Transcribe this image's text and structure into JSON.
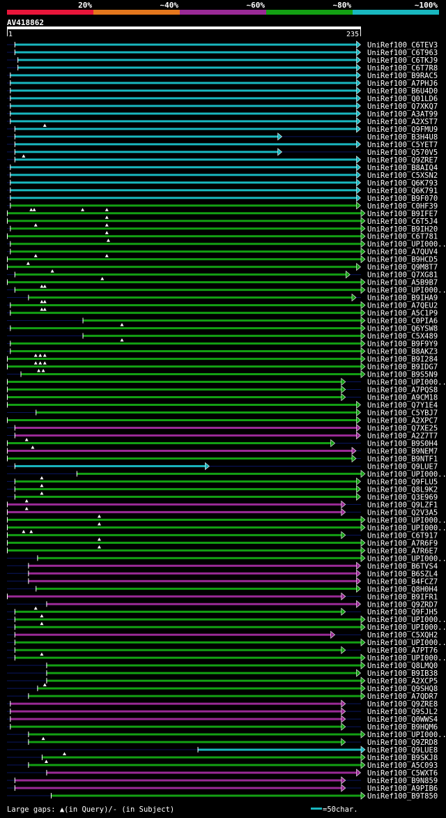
{
  "header": {
    "identity_legend": [
      "20%",
      "~40%",
      "~60%",
      "~80%",
      "~100%"
    ],
    "identity_colors": [
      "#e8163a",
      "#e4771d",
      "#9a2a96",
      "#13a013",
      "#19b7bf"
    ],
    "query_id": "AV418862",
    "scale_start": "1",
    "scale_end": "235"
  },
  "footer": {
    "gaps_legend": "Large gaps: ▲(in Query)/- (in Subject)",
    "scale_legend": "=50char."
  },
  "chart_data": {
    "type": "alignment-overview",
    "query_length": 235,
    "rows": [
      {
        "label": "UniRef100_C6TEV3",
        "start": 6,
        "end": 232,
        "identity": "~100%",
        "arrow": true,
        "gaps": []
      },
      {
        "label": "UniRef100_C6T963",
        "start": 6,
        "end": 232,
        "identity": "~100%",
        "arrow": true,
        "gaps": []
      },
      {
        "label": "UniRef100_C6TKJ9",
        "start": 8,
        "end": 232,
        "identity": "~100%",
        "arrow": true,
        "gaps": []
      },
      {
        "label": "UniRef100_C6T7R8",
        "start": 8,
        "end": 232,
        "identity": "~100%",
        "arrow": true,
        "gaps": []
      },
      {
        "label": "UniRef100_B9RAC5",
        "start": 3,
        "end": 232,
        "identity": "~100%",
        "arrow": true,
        "gaps": []
      },
      {
        "label": "UniRef100_A7PHJ6",
        "start": 3,
        "end": 232,
        "identity": "~100%",
        "arrow": true,
        "gaps": []
      },
      {
        "label": "UniRef100_B6U4D0",
        "start": 3,
        "end": 232,
        "identity": "~100%",
        "arrow": true,
        "gaps": []
      },
      {
        "label": "UniRef100_Q01LD6",
        "start": 3,
        "end": 232,
        "identity": "~100%",
        "arrow": true,
        "gaps": []
      },
      {
        "label": "UniRef100_Q7XKQ7",
        "start": 3,
        "end": 232,
        "identity": "~100%",
        "arrow": true,
        "gaps": []
      },
      {
        "label": "UniRef100_A3AT99",
        "start": 3,
        "end": 232,
        "identity": "~100%",
        "arrow": true,
        "gaps": []
      },
      {
        "label": "UniRef100_A2XST7",
        "start": 3,
        "end": 232,
        "identity": "~100%",
        "arrow": true,
        "gaps": []
      },
      {
        "label": "UniRef100_Q9FMU9",
        "start": 6,
        "end": 232,
        "identity": "~100%",
        "arrow": true,
        "gaps": [
          26
        ]
      },
      {
        "label": "UniRef100_B3H4U8",
        "start": 6,
        "end": 180,
        "identity": "~100%",
        "arrow": true,
        "gaps": []
      },
      {
        "label": "UniRef100_C5YET7",
        "start": 6,
        "end": 232,
        "identity": "~100%",
        "arrow": true,
        "gaps": []
      },
      {
        "label": "UniRef100_Q570V5",
        "start": 6,
        "end": 180,
        "identity": "~100%",
        "arrow": true,
        "gaps": []
      },
      {
        "label": "UniRef100_Q9ZRE7",
        "start": 6,
        "end": 232,
        "identity": "~100%",
        "arrow": true,
        "gaps": [
          12
        ]
      },
      {
        "label": "UniRef100_B8AIQ4",
        "start": 3,
        "end": 232,
        "identity": "~100%",
        "arrow": true,
        "gaps": []
      },
      {
        "label": "UniRef100_C5XSN2",
        "start": 3,
        "end": 232,
        "identity": "~100%",
        "arrow": true,
        "gaps": []
      },
      {
        "label": "UniRef100_Q6K793",
        "start": 3,
        "end": 232,
        "identity": "~100%",
        "arrow": true,
        "gaps": []
      },
      {
        "label": "UniRef100_Q6K791",
        "start": 3,
        "end": 232,
        "identity": "~100%",
        "arrow": true,
        "gaps": []
      },
      {
        "label": "UniRef100_B9F070",
        "start": 3,
        "end": 232,
        "identity": "~100%",
        "arrow": true,
        "gaps": []
      },
      {
        "label": "UniRef100_C0HF39",
        "start": 3,
        "end": 232,
        "identity": "~80%",
        "arrow": true,
        "gaps": []
      },
      {
        "label": "UniRef100_B9IFE7",
        "start": 1,
        "end": 235,
        "identity": "~80%",
        "arrow": true,
        "gaps": [
          17,
          19,
          51,
          67
        ]
      },
      {
        "label": "UniRef100_C6T5J4",
        "start": 1,
        "end": 235,
        "identity": "~80%",
        "arrow": true,
        "gaps": [
          67
        ]
      },
      {
        "label": "UniRef100_B9IH20",
        "start": 3,
        "end": 235,
        "identity": "~80%",
        "arrow": true,
        "gaps": [
          20,
          67
        ]
      },
      {
        "label": "UniRef100_C6T781",
        "start": 1,
        "end": 235,
        "identity": "~80%",
        "arrow": true,
        "gaps": [
          67
        ]
      },
      {
        "label": "UniRef100_UPI000..",
        "start": 3,
        "end": 235,
        "identity": "~80%",
        "arrow": true,
        "gaps": [
          68
        ]
      },
      {
        "label": "UniRef100_A7QUV4",
        "start": 3,
        "end": 235,
        "identity": "~80%",
        "arrow": true,
        "gaps": []
      },
      {
        "label": "UniRef100_B9HCD5",
        "start": 1,
        "end": 235,
        "identity": "~80%",
        "arrow": true,
        "gaps": [
          20,
          67
        ]
      },
      {
        "label": "UniRef100_Q9M8T7",
        "start": 1,
        "end": 232,
        "identity": "~80%",
        "arrow": true,
        "gaps": [
          15
        ]
      },
      {
        "label": "UniRef100_Q7XG81",
        "start": 6,
        "end": 225,
        "identity": "~80%",
        "arrow": true,
        "gaps": [
          31
        ]
      },
      {
        "label": "UniRef100_A5B9B7",
        "start": 1,
        "end": 235,
        "identity": "~80%",
        "arrow": true,
        "gaps": [
          64
        ]
      },
      {
        "label": "UniRef100_UPI000..",
        "start": 6,
        "end": 235,
        "identity": "~80%",
        "arrow": true,
        "gaps": [
          24,
          26
        ]
      },
      {
        "label": "UniRef100_B9IHA9",
        "start": 15,
        "end": 229,
        "identity": "~80%",
        "arrow": true,
        "gaps": []
      },
      {
        "label": "UniRef100_A7QEU2",
        "start": 3,
        "end": 235,
        "identity": "~80%",
        "arrow": true,
        "gaps": [
          24,
          26
        ]
      },
      {
        "label": "UniRef100_A5C1P9",
        "start": 3,
        "end": 235,
        "identity": "~80%",
        "arrow": true,
        "gaps": [
          24,
          26
        ]
      },
      {
        "label": "UniRef100_C0PIA6",
        "start": 51,
        "end": 235,
        "identity": "~80%",
        "arrow": true,
        "gaps": []
      },
      {
        "label": "UniRef100_Q6YSW8",
        "start": 3,
        "end": 235,
        "identity": "~80%",
        "arrow": true,
        "gaps": [
          77
        ]
      },
      {
        "label": "UniRef100_C5X489",
        "start": 51,
        "end": 235,
        "identity": "~80%",
        "arrow": true,
        "gaps": []
      },
      {
        "label": "UniRef100_B9F9Y9",
        "start": 3,
        "end": 235,
        "identity": "~80%",
        "arrow": true,
        "gaps": [
          77
        ]
      },
      {
        "label": "UniRef100_B8AKZ3",
        "start": 3,
        "end": 235,
        "identity": "~80%",
        "arrow": true,
        "gaps": []
      },
      {
        "label": "UniRef100_B9I284",
        "start": 1,
        "end": 235,
        "identity": "~80%",
        "arrow": true,
        "gaps": [
          20,
          23,
          26
        ]
      },
      {
        "label": "UniRef100_B9IDG7",
        "start": 1,
        "end": 235,
        "identity": "~80%",
        "arrow": true,
        "gaps": [
          20,
          23,
          26
        ]
      },
      {
        "label": "UniRef100_B9S5N9",
        "start": 10,
        "end": 235,
        "identity": "~80%",
        "arrow": true,
        "gaps": [
          22,
          25
        ]
      },
      {
        "label": "UniRef100_UPI000..",
        "start": 1,
        "end": 222,
        "identity": "~80%",
        "arrow": true,
        "gaps": []
      },
      {
        "label": "UniRef100_A7PQS8",
        "start": 1,
        "end": 222,
        "identity": "~80%",
        "arrow": true,
        "gaps": []
      },
      {
        "label": "UniRef100_A9CM18",
        "start": 1,
        "end": 222,
        "identity": "~80%",
        "arrow": true,
        "gaps": []
      },
      {
        "label": "UniRef100_Q7Y1E4",
        "start": 1,
        "end": 232,
        "identity": "~80%",
        "arrow": true,
        "gaps": []
      },
      {
        "label": "UniRef100_C5YBJ7",
        "start": 20,
        "end": 232,
        "identity": "~80%",
        "arrow": true,
        "gaps": []
      },
      {
        "label": "UniRef100_A2XPC7",
        "start": 1,
        "end": 232,
        "identity": "~80%",
        "arrow": true,
        "gaps": []
      },
      {
        "label": "UniRef100_Q7XE25",
        "start": 6,
        "end": 232,
        "identity": "~60%",
        "arrow": true,
        "gaps": []
      },
      {
        "label": "UniRef100_A2Z7T7",
        "start": 6,
        "end": 232,
        "identity": "~60%",
        "arrow": true,
        "gaps": []
      },
      {
        "label": "UniRef100_B9S0H4",
        "start": 1,
        "end": 215,
        "identity": "~80%",
        "arrow": true,
        "gaps": [
          14
        ]
      },
      {
        "label": "UniRef100_B9NEM7",
        "start": 1,
        "end": 229,
        "identity": "~60%",
        "arrow": true,
        "gaps": [
          18
        ]
      },
      {
        "label": "UniRef100_B9NTF1",
        "start": 1,
        "end": 229,
        "identity": "~80%",
        "arrow": true,
        "gaps": []
      },
      {
        "label": "UniRef100_Q9LUE7",
        "start": 6,
        "end": 132,
        "identity": "~100%",
        "arrow": true,
        "gaps": []
      },
      {
        "label": "UniRef100_UPI000..",
        "start": 47,
        "end": 235,
        "identity": "~80%",
        "arrow": true,
        "gaps": []
      },
      {
        "label": "UniRef100_Q9FLU5",
        "start": 6,
        "end": 232,
        "identity": "~80%",
        "arrow": true,
        "gaps": [
          24
        ]
      },
      {
        "label": "UniRef100_Q8L9K2",
        "start": 6,
        "end": 232,
        "identity": "~80%",
        "arrow": true,
        "gaps": [
          24
        ]
      },
      {
        "label": "UniRef100_Q3E969",
        "start": 6,
        "end": 232,
        "identity": "~80%",
        "arrow": true,
        "gaps": [
          24
        ]
      },
      {
        "label": "UniRef100_Q9LZF1",
        "start": 1,
        "end": 222,
        "identity": "~60%",
        "arrow": true,
        "gaps": [
          14
        ]
      },
      {
        "label": "UniRef100_Q2V3A5",
        "start": 1,
        "end": 222,
        "identity": "~60%",
        "arrow": true,
        "gaps": [
          14
        ]
      },
      {
        "label": "UniRef100_UPI000..",
        "start": 1,
        "end": 235,
        "identity": "~80%",
        "arrow": true,
        "gaps": [
          62
        ]
      },
      {
        "label": "UniRef100_UPI000..",
        "start": 1,
        "end": 235,
        "identity": "~80%",
        "arrow": true,
        "gaps": [
          62
        ]
      },
      {
        "label": "UniRef100_C6T917",
        "start": 1,
        "end": 222,
        "identity": "~80%",
        "arrow": true,
        "gaps": [
          12,
          17
        ]
      },
      {
        "label": "UniRef100_A7R6F9",
        "start": 1,
        "end": 235,
        "identity": "~80%",
        "arrow": true,
        "gaps": [
          62
        ]
      },
      {
        "label": "UniRef100_A7R6E7",
        "start": 1,
        "end": 235,
        "identity": "~80%",
        "arrow": true,
        "gaps": [
          62
        ]
      },
      {
        "label": "UniRef100_UPI000..",
        "start": 21,
        "end": 235,
        "identity": "~80%",
        "arrow": true,
        "gaps": []
      },
      {
        "label": "UniRef100_B6TVS4",
        "start": 15,
        "end": 232,
        "identity": "~60%",
        "arrow": true,
        "gaps": []
      },
      {
        "label": "UniRef100_B6SZL4",
        "start": 15,
        "end": 232,
        "identity": "~60%",
        "arrow": true,
        "gaps": []
      },
      {
        "label": "UniRef100_B4FCZ7",
        "start": 15,
        "end": 232,
        "identity": "~60%",
        "arrow": true,
        "gaps": []
      },
      {
        "label": "UniRef100_Q8H0H4",
        "start": 20,
        "end": 232,
        "identity": "~80%",
        "arrow": true,
        "gaps": []
      },
      {
        "label": "UniRef100_B9IFR1",
        "start": 1,
        "end": 222,
        "identity": "~60%",
        "arrow": true,
        "gaps": []
      },
      {
        "label": "UniRef100_Q9ZRD7",
        "start": 27,
        "end": 232,
        "identity": "~60%",
        "arrow": true,
        "gaps": []
      },
      {
        "label": "UniRef100_Q9FJH5",
        "start": 6,
        "end": 222,
        "identity": "~80%",
        "arrow": true,
        "gaps": [
          20
        ]
      },
      {
        "label": "UniRef100_UPI000..",
        "start": 6,
        "end": 235,
        "identity": "~80%",
        "arrow": true,
        "gaps": [
          24
        ]
      },
      {
        "label": "UniRef100_UPI000..",
        "start": 6,
        "end": 235,
        "identity": "~80%",
        "arrow": true,
        "gaps": [
          24
        ]
      },
      {
        "label": "UniRef100_C5XQH2",
        "start": 6,
        "end": 215,
        "identity": "~60%",
        "arrow": true,
        "gaps": []
      },
      {
        "label": "UniRef100_UPI000..",
        "start": 6,
        "end": 235,
        "identity": "~80%",
        "arrow": true,
        "gaps": []
      },
      {
        "label": "UniRef100_A7PT76",
        "start": 6,
        "end": 222,
        "identity": "~80%",
        "arrow": true,
        "gaps": []
      },
      {
        "label": "UniRef100_UPI000..",
        "start": 6,
        "end": 235,
        "identity": "~80%",
        "arrow": true,
        "gaps": [
          24
        ]
      },
      {
        "label": "UniRef100_Q8LMQ0",
        "start": 27,
        "end": 235,
        "identity": "~80%",
        "arrow": true,
        "gaps": []
      },
      {
        "label": "UniRef100_B9IB38",
        "start": 27,
        "end": 232,
        "identity": "~80%",
        "arrow": true,
        "gaps": []
      },
      {
        "label": "UniRef100_A2XCP5",
        "start": 27,
        "end": 235,
        "identity": "~80%",
        "arrow": true,
        "gaps": []
      },
      {
        "label": "UniRef100_Q9SHQ8",
        "start": 21,
        "end": 235,
        "identity": "~80%",
        "arrow": true,
        "gaps": [
          26
        ]
      },
      {
        "label": "UniRef100_A7QDR7",
        "start": 15,
        "end": 235,
        "identity": "~80%",
        "arrow": true,
        "gaps": []
      },
      {
        "label": "UniRef100_Q9ZRE8",
        "start": 3,
        "end": 222,
        "identity": "~60%",
        "arrow": true,
        "gaps": []
      },
      {
        "label": "UniRef100_Q9SJL2",
        "start": 3,
        "end": 222,
        "identity": "~60%",
        "arrow": true,
        "gaps": []
      },
      {
        "label": "UniRef100_Q0WWS4",
        "start": 3,
        "end": 222,
        "identity": "~60%",
        "arrow": true,
        "gaps": []
      },
      {
        "label": "UniRef100_B9HQM6",
        "start": 3,
        "end": 222,
        "identity": "~80%",
        "arrow": true,
        "gaps": []
      },
      {
        "label": "UniRef100_UPI000..",
        "start": 15,
        "end": 235,
        "identity": "~80%",
        "arrow": true,
        "gaps": []
      },
      {
        "label": "UniRef100_Q9ZRD8",
        "start": 15,
        "end": 222,
        "identity": "~80%",
        "arrow": true,
        "gaps": [
          25
        ]
      },
      {
        "label": "UniRef100_Q9LUE8",
        "start": 127,
        "end": 235,
        "identity": "~100%",
        "arrow": true,
        "gaps": []
      },
      {
        "label": "UniRef100_B9SKJ8",
        "start": 24,
        "end": 235,
        "identity": "~80%",
        "arrow": true,
        "gaps": [
          39
        ]
      },
      {
        "label": "UniRef100_A5C093",
        "start": 15,
        "end": 235,
        "identity": "~80%",
        "arrow": true,
        "gaps": [
          27
        ]
      },
      {
        "label": "UniRef100_C5WXT6",
        "start": 27,
        "end": 232,
        "identity": "~60%",
        "arrow": true,
        "gaps": []
      },
      {
        "label": "UniRef100_B9N859",
        "start": 6,
        "end": 222,
        "identity": "~60%",
        "arrow": true,
        "gaps": []
      },
      {
        "label": "UniRef100_A9PIB6",
        "start": 6,
        "end": 222,
        "identity": "~60%",
        "arrow": true,
        "gaps": []
      },
      {
        "label": "UniRef100_B9T850",
        "start": 30,
        "end": 235,
        "identity": "~80%",
        "arrow": true,
        "gaps": []
      }
    ]
  }
}
